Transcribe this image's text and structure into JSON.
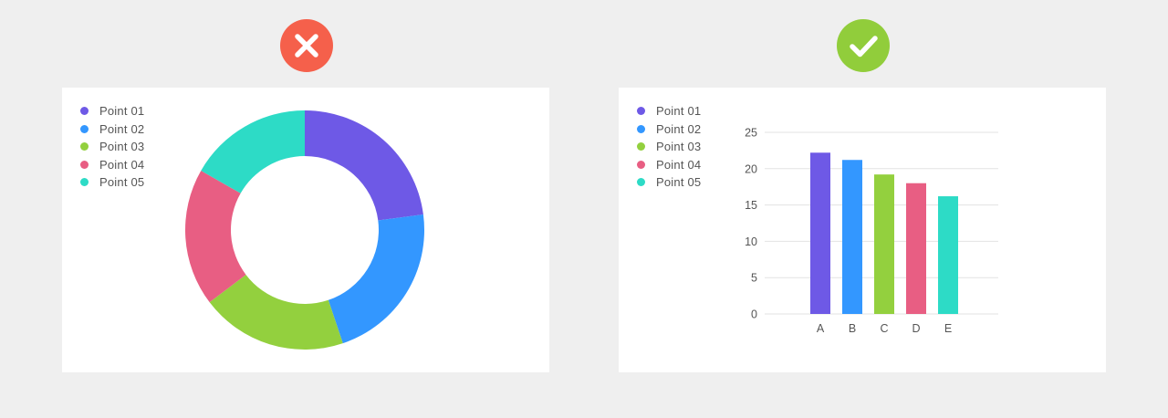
{
  "badges": {
    "bad": {
      "icon": "x-icon",
      "color": "#f5604b"
    },
    "good": {
      "icon": "check-icon",
      "color": "#91cd3b"
    }
  },
  "legend": [
    {
      "label": "Point 01",
      "color": "#6e59e6"
    },
    {
      "label": "Point 02",
      "color": "#3397ff"
    },
    {
      "label": "Point 03",
      "color": "#93d03e"
    },
    {
      "label": "Point 04",
      "color": "#e85e83"
    },
    {
      "label": "Point 05",
      "color": "#2ddbc6"
    }
  ],
  "chart_data": [
    {
      "type": "pie",
      "donut": true,
      "categories": [
        "Point 01",
        "Point 02",
        "Point 03",
        "Point 04",
        "Point 05"
      ],
      "values": [
        22.2,
        21.2,
        19.2,
        18,
        16.2
      ],
      "colors": [
        "#6e59e6",
        "#3397ff",
        "#93d03e",
        "#e85e83",
        "#2ddbc6"
      ],
      "legend_position": "top-left"
    },
    {
      "type": "bar",
      "categories": [
        "A",
        "B",
        "C",
        "D",
        "E"
      ],
      "values": [
        22.2,
        21.2,
        19.2,
        18,
        16.2
      ],
      "colors": [
        "#6e59e6",
        "#3397ff",
        "#93d03e",
        "#e85e83",
        "#2ddbc6"
      ],
      "ylim": [
        0,
        25
      ],
      "yticks": [
        "0",
        "5",
        "10",
        "15",
        "20",
        "25"
      ],
      "grid": true,
      "legend_position": "top-left"
    }
  ]
}
